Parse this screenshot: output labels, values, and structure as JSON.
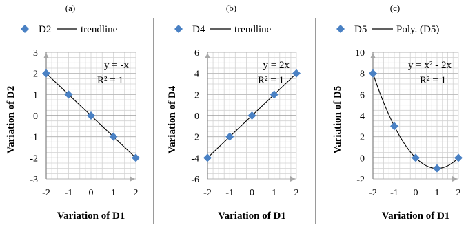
{
  "chart_data": [
    {
      "panel_label": "(a)",
      "type": "scatter",
      "x": [
        -2,
        -1,
        0,
        1,
        2
      ],
      "y": [
        2,
        1,
        0,
        -1,
        -2
      ],
      "marker_color": "#4a81c4",
      "trend": {
        "kind": "linear",
        "coefficients": {
          "a": 0,
          "b": -1,
          "c": 0
        },
        "color": "#000000"
      },
      "legend": [
        "D2",
        "trendline"
      ],
      "legend_position": "top",
      "equation": "y = -x",
      "r2": "R² = 1",
      "xlabel": "Variation of D1",
      "ylabel": "Variation of D2",
      "xlim": [
        -2,
        2
      ],
      "ylim": [
        -3,
        3
      ],
      "xticks": [
        -2,
        -1,
        0,
        1,
        2
      ],
      "yticks": [
        -3,
        -2,
        -1,
        0,
        1,
        2,
        3
      ],
      "grid": true
    },
    {
      "panel_label": "(b)",
      "type": "scatter",
      "x": [
        -2,
        -1,
        0,
        1,
        2
      ],
      "y": [
        -4,
        -2,
        0,
        2,
        4
      ],
      "marker_color": "#4a81c4",
      "trend": {
        "kind": "linear",
        "coefficients": {
          "a": 0,
          "b": 2,
          "c": 0
        },
        "color": "#000000"
      },
      "legend": [
        "D4",
        "trendline"
      ],
      "legend_position": "top",
      "equation": "y = 2x",
      "r2": "R² = 1",
      "xlabel": "Variation of D1",
      "ylabel": "Variation of D4",
      "xlim": [
        -2,
        2
      ],
      "ylim": [
        -6,
        6
      ],
      "xticks": [
        -2,
        -1,
        0,
        1,
        2
      ],
      "yticks": [
        -6,
        -4,
        -2,
        0,
        2,
        4,
        6
      ],
      "grid": true
    },
    {
      "panel_label": "(c)",
      "type": "scatter",
      "x": [
        -2,
        -1,
        0,
        1,
        2
      ],
      "y": [
        8,
        3,
        0,
        -1,
        0
      ],
      "marker_color": "#4a81c4",
      "trend": {
        "kind": "polynomial",
        "coefficients": {
          "a": 1,
          "b": -2,
          "c": 0
        },
        "color": "#000000"
      },
      "legend": [
        "D5",
        "Poly. (D5)"
      ],
      "legend_position": "top",
      "equation": "y = x² - 2x",
      "r2": "R² = 1",
      "xlabel": "Variation of D1",
      "ylabel": "Variation of D5",
      "xlim": [
        -2,
        2
      ],
      "ylim": [
        -2,
        10
      ],
      "xticks": [
        -2,
        -1,
        0,
        1,
        2
      ],
      "yticks": [
        -2,
        0,
        2,
        4,
        6,
        8,
        10
      ],
      "grid": true
    }
  ]
}
